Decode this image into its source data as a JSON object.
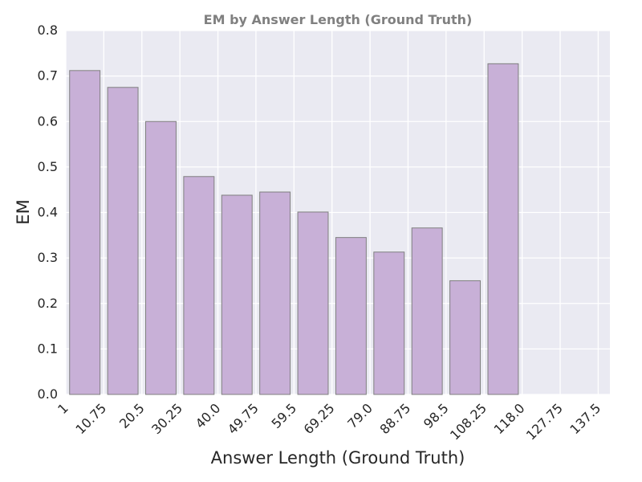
{
  "chart_data": {
    "type": "bar",
    "title": "EM by Answer Length (Ground Truth)",
    "xlabel": "Answer Length (Ground Truth)",
    "ylabel": "EM",
    "x_tick_labels": [
      "1",
      "10.75",
      "20.5",
      "30.25",
      "40.0",
      "49.75",
      "59.5",
      "69.25",
      "79.0",
      "88.75",
      "98.5",
      "108.25",
      "118.0",
      "127.75",
      "137.5"
    ],
    "x_ticks": [
      1,
      10.75,
      20.5,
      30.25,
      40.0,
      49.75,
      59.5,
      69.25,
      79.0,
      88.75,
      98.5,
      108.25,
      118.0,
      127.75,
      137.5
    ],
    "bin_edges": [
      1,
      10.75,
      20.5,
      30.25,
      40.0,
      49.75,
      59.5,
      69.25,
      79.0,
      88.75,
      98.5,
      108.25,
      118.0,
      127.75,
      137.5
    ],
    "values": [
      0.712,
      0.675,
      0.6,
      0.479,
      0.438,
      0.445,
      0.401,
      0.345,
      0.313,
      0.366,
      0.25,
      0.727,
      0.0,
      0.0
    ],
    "y_ticks": [
      0.0,
      0.1,
      0.2,
      0.3,
      0.4,
      0.5,
      0.6,
      0.7,
      0.8
    ],
    "y_tick_labels": [
      "0.0",
      "0.1",
      "0.2",
      "0.3",
      "0.4",
      "0.5",
      "0.6",
      "0.7",
      "0.8"
    ],
    "xlim": [
      1,
      140.5
    ],
    "ylim": [
      0,
      0.8
    ],
    "grid": true,
    "colors": {
      "bar_fill": "#c8b0d7",
      "bar_edge": "#7f7f7f",
      "plot_background": "#eaeaf2",
      "grid": "#ffffff"
    }
  }
}
